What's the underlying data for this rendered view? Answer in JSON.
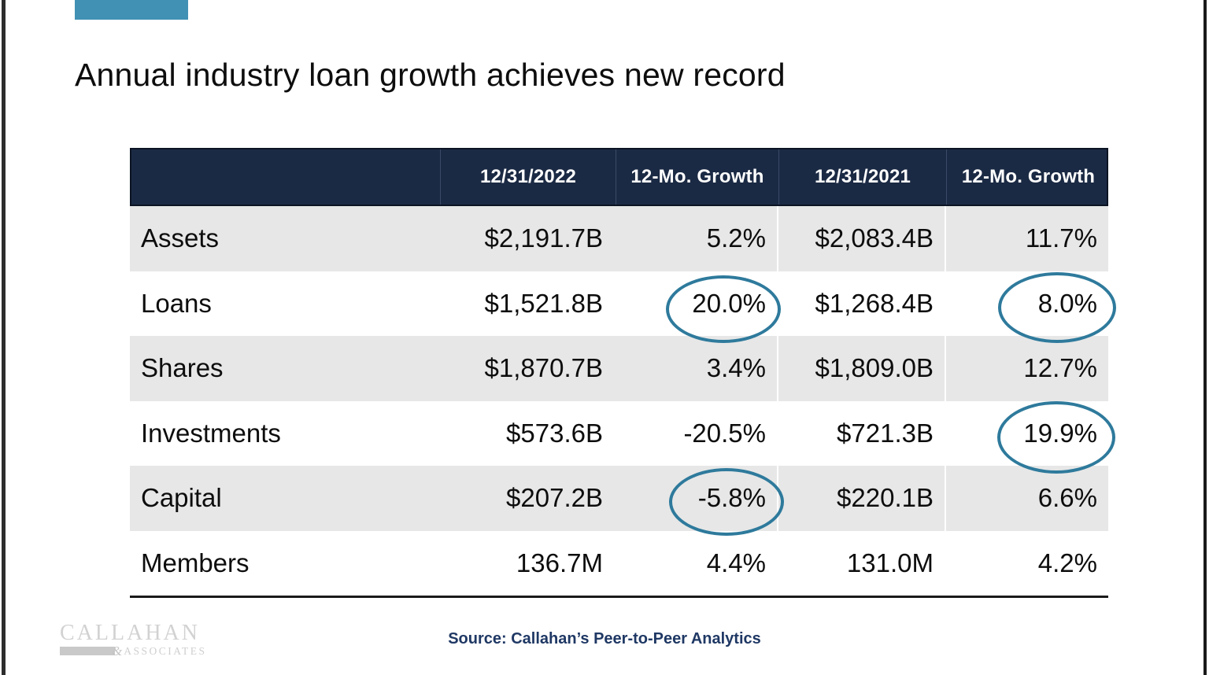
{
  "slide": {
    "title": "Annual industry loan growth achieves new record",
    "source_text": "Source: Callahan’s Peer-to-Peer Analytics",
    "accent_color": "#4191b4",
    "highlight_circle_color": "#2e7a9c"
  },
  "logo": {
    "name": "CALLAHAN",
    "ampersand": "&",
    "associates": "ASSOCIATES"
  },
  "table": {
    "columns": [
      "",
      "12/31/2022",
      "12-Mo. Growth",
      "12/31/2021",
      "12-Mo. Growth"
    ],
    "rows": [
      {
        "label": "Assets",
        "v2022": "$2,191.7B",
        "g2022": "5.2%",
        "v2021": "$2,083.4B",
        "g2021": "11.7%"
      },
      {
        "label": "Loans",
        "v2022": "$1,521.8B",
        "g2022": "20.0%",
        "v2021": "$1,268.4B",
        "g2021": "8.0%"
      },
      {
        "label": "Shares",
        "v2022": "$1,870.7B",
        "g2022": "3.4%",
        "v2021": "$1,809.0B",
        "g2021": "12.7%"
      },
      {
        "label": "Investments",
        "v2022": "$573.6B",
        "g2022": "-20.5%",
        "v2021": "$721.3B",
        "g2021": "19.9%"
      },
      {
        "label": "Capital",
        "v2022": "$207.2B",
        "g2022": "-5.8%",
        "v2021": "$220.1B",
        "g2021": "6.6%"
      },
      {
        "label": "Members",
        "v2022": "136.7M",
        "g2022": "4.4%",
        "v2021": "131.0M",
        "g2021": "4.2%"
      }
    ],
    "circled_values": [
      {
        "row": "Loans",
        "column": "12-Mo. Growth (2022)",
        "value": "20.0%"
      },
      {
        "row": "Loans",
        "column": "12-Mo. Growth (2021)",
        "value": "8.0%"
      },
      {
        "row": "Investments",
        "column": "12-Mo. Growth (2021)",
        "value": "19.9%"
      },
      {
        "row": "Capital",
        "column": "12-Mo. Growth (2022)",
        "value": "-5.8%"
      }
    ]
  }
}
